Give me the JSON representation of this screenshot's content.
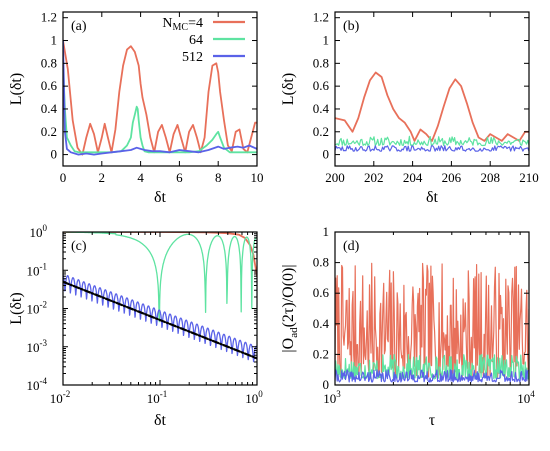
{
  "colors": {
    "N4": "#e8705a",
    "N64": "#5ee3a1",
    "N512": "#5a62e8",
    "bound": "#000000"
  },
  "chart_data": [
    {
      "panel": "(a)",
      "type": "line",
      "xlabel": "δt",
      "ylabel": "L(δt)",
      "xlim": [
        0,
        10
      ],
      "ylim": [
        -0.1,
        1.25
      ],
      "xticks": [
        0,
        2,
        4,
        6,
        8,
        10
      ],
      "xtick_labels": [
        "0",
        "2",
        "4",
        "6",
        "8",
        "10"
      ],
      "yticks": [
        0,
        0.2,
        0.4,
        0.6,
        0.8,
        1,
        1.2
      ],
      "ytick_labels": [
        "0",
        "0.2",
        "0.4",
        "0.6",
        "0.8",
        "1",
        "1.2"
      ],
      "legend": {
        "position": "top-right",
        "entries": [
          {
            "label_main": "N",
            "label_sub": "MC",
            "label_tail": "=4",
            "series": "N4"
          },
          {
            "label": "64",
            "series": "N64"
          },
          {
            "label": "512",
            "series": "N512"
          }
        ]
      },
      "series": [
        {
          "key": "N4",
          "x": [
            0,
            0.25,
            0.5,
            0.75,
            1.0,
            1.2,
            1.4,
            1.6,
            1.8,
            2.0,
            2.15,
            2.3,
            2.5,
            2.7,
            2.9,
            3.1,
            3.3,
            3.5,
            3.7,
            3.9,
            4.0,
            4.1,
            4.3,
            4.5,
            4.7,
            4.9,
            5.1,
            5.3,
            5.5,
            5.7,
            5.9,
            6.1,
            6.3,
            6.5,
            6.7,
            6.9,
            7.1,
            7.3,
            7.5,
            7.7,
            7.9,
            8.0,
            8.1,
            8.3,
            8.5,
            8.7,
            8.9,
            9.1,
            9.3,
            9.5,
            9.7,
            9.9,
            10.0
          ],
          "y": [
            1.0,
            0.75,
            0.3,
            0.06,
            0.0,
            0.15,
            0.27,
            0.18,
            0.02,
            0.15,
            0.27,
            0.16,
            0.02,
            0.22,
            0.55,
            0.78,
            0.92,
            0.95,
            0.9,
            0.78,
            0.62,
            0.5,
            0.35,
            0.15,
            0.02,
            0.2,
            0.26,
            0.15,
            0.02,
            0.18,
            0.26,
            0.14,
            0.02,
            0.2,
            0.26,
            0.15,
            0.02,
            0.15,
            0.55,
            0.78,
            0.8,
            0.72,
            0.55,
            0.3,
            0.08,
            0.03,
            0.2,
            0.22,
            0.05,
            0.02,
            0.15,
            0.28,
            0.28
          ]
        },
        {
          "key": "N64",
          "x": [
            0,
            0.1,
            0.2,
            0.4,
            0.6,
            0.8,
            1.0,
            1.5,
            2.0,
            2.5,
            3.0,
            3.3,
            3.5,
            3.6,
            3.7,
            3.8,
            3.85,
            3.9,
            4.0,
            4.1,
            4.2,
            4.4,
            4.7,
            5.0,
            5.5,
            6.0,
            6.5,
            7.0,
            7.4,
            7.7,
            7.9,
            8.0,
            8.1,
            8.3,
            8.6,
            9.0,
            9.5,
            10.0
          ],
          "y": [
            0.8,
            0.4,
            0.15,
            0.08,
            0.03,
            0.02,
            0.02,
            0.02,
            0.02,
            0.02,
            0.03,
            0.08,
            0.15,
            0.28,
            0.35,
            0.42,
            0.4,
            0.3,
            0.15,
            0.08,
            0.03,
            0.02,
            0.02,
            0.02,
            0.02,
            0.02,
            0.02,
            0.03,
            0.08,
            0.13,
            0.18,
            0.2,
            0.15,
            0.06,
            0.02,
            0.02,
            0.02,
            0.02
          ]
        },
        {
          "key": "N512",
          "x": [
            0,
            0.1,
            0.2,
            0.4,
            0.8,
            1.2,
            1.6,
            2.0,
            2.5,
            3.0,
            3.5,
            3.8,
            4.0,
            4.2,
            4.6,
            5.0,
            5.5,
            6.0,
            6.5,
            7.0,
            7.5,
            8.0,
            8.3,
            8.6,
            9.0,
            9.3,
            9.6,
            10.0
          ],
          "y": [
            1.0,
            0.2,
            0.05,
            0.02,
            0.0,
            0.01,
            0.0,
            0.01,
            0.02,
            0.03,
            0.04,
            0.06,
            0.05,
            0.04,
            0.03,
            0.03,
            0.02,
            0.04,
            0.03,
            0.02,
            0.04,
            0.07,
            0.05,
            0.06,
            0.07,
            0.06,
            0.08,
            0.05
          ]
        }
      ]
    },
    {
      "panel": "(b)",
      "type": "line",
      "xlabel": "δt",
      "ylabel": "L(δt)",
      "xlim": [
        200,
        210
      ],
      "ylim": [
        -0.1,
        1.25
      ],
      "xticks": [
        200,
        202,
        204,
        206,
        208,
        210
      ],
      "xtick_labels": [
        "200",
        "202",
        "204",
        "206",
        "208",
        "210"
      ],
      "yticks": [
        0,
        0.2,
        0.4,
        0.6,
        0.8,
        1,
        1.2
      ],
      "ytick_labels": [
        "0",
        "0.2",
        "0.4",
        "0.6",
        "0.8",
        "1",
        "1.2"
      ],
      "series": [
        {
          "key": "N4",
          "x": [
            200,
            200.5,
            200.9,
            201.2,
            201.5,
            201.8,
            202.1,
            202.4,
            202.7,
            203.0,
            203.3,
            203.6,
            203.9,
            204.1,
            204.4,
            204.7,
            205.0,
            205.3,
            205.6,
            205.9,
            206.2,
            206.5,
            206.8,
            207.1,
            207.4,
            207.7,
            208.0,
            208.3,
            208.6,
            208.9,
            209.2,
            209.5,
            209.8,
            210
          ],
          "y": [
            0.32,
            0.3,
            0.2,
            0.32,
            0.5,
            0.65,
            0.72,
            0.68,
            0.52,
            0.4,
            0.32,
            0.28,
            0.2,
            0.12,
            0.22,
            0.18,
            0.12,
            0.25,
            0.42,
            0.58,
            0.66,
            0.6,
            0.45,
            0.28,
            0.15,
            0.12,
            0.18,
            0.15,
            0.12,
            0.18,
            0.15,
            0.12,
            0.2,
            0.2
          ]
        },
        {
          "key": "N64",
          "noise": {
            "base": 0.08,
            "amp": 0.08,
            "seed": 11,
            "count": 160
          }
        },
        {
          "key": "N512",
          "noise": {
            "base": 0.03,
            "amp": 0.05,
            "seed": 29,
            "count": 160
          }
        }
      ]
    },
    {
      "panel": "(c)",
      "type": "line",
      "scale": "log-log",
      "xlabel": "δt",
      "ylabel": "L(δt)",
      "xlim": [
        0.01,
        1
      ],
      "ylim": [
        0.0001,
        1
      ],
      "xticks": [
        0.01,
        0.1,
        1
      ],
      "xtick_base": [
        "10",
        "10",
        "10"
      ],
      "xtick_exp": [
        "-2",
        "-1",
        "0"
      ],
      "yticks": [
        0.0001,
        0.001,
        0.01,
        0.1,
        1
      ],
      "ytick_base": [
        "10",
        "10",
        "10",
        "10",
        "10"
      ],
      "ytick_exp": [
        "-4",
        "-3",
        "-2",
        "-1",
        "0"
      ],
      "series": [
        {
          "key": "N4",
          "x": [
            0.01,
            0.1,
            0.3,
            0.5,
            0.65,
            0.75,
            0.85,
            0.92,
            0.96,
            1.0
          ],
          "y": [
            1.0,
            1.0,
            0.98,
            0.93,
            0.85,
            0.7,
            0.45,
            0.25,
            0.13,
            0.07
          ]
        },
        {
          "key": "N64",
          "description_free": true,
          "model": "oscillating",
          "amp": 0.5,
          "k": 50
        },
        {
          "key": "N512",
          "model": "oscillating-decay",
          "k": 160
        },
        {
          "key": "bound",
          "style": "dash-dot",
          "x": [
            0.01,
            1
          ],
          "y": [
            0.05,
            0.0005
          ]
        }
      ]
    },
    {
      "panel": "(d)",
      "type": "line",
      "scale": "log-x",
      "xlabel": "τ",
      "ylabel_parts": {
        "pre": "|O",
        "sub": "ad",
        "post": "(2τ)/O(0)|"
      },
      "xlim": [
        1000,
        10000
      ],
      "ylim": [
        0,
        1
      ],
      "xticks": [
        1000,
        10000
      ],
      "xtick_base": [
        "10",
        "10"
      ],
      "xtick_exp": [
        "3",
        "4"
      ],
      "yticks": [
        0,
        0.2,
        0.4,
        0.6,
        0.8,
        1
      ],
      "ytick_labels": [
        "0",
        "0.2",
        "0.4",
        "0.6",
        "0.8",
        "1"
      ],
      "series": [
        {
          "key": "N4",
          "noise": {
            "base": 0.05,
            "amp": 0.75,
            "seed": 7,
            "count": 260
          }
        },
        {
          "key": "N64",
          "noise": {
            "base": 0.04,
            "amp": 0.16,
            "seed": 17,
            "count": 260
          }
        },
        {
          "key": "N512",
          "noise": {
            "base": 0.02,
            "amp": 0.08,
            "seed": 41,
            "count": 260
          }
        }
      ]
    }
  ]
}
